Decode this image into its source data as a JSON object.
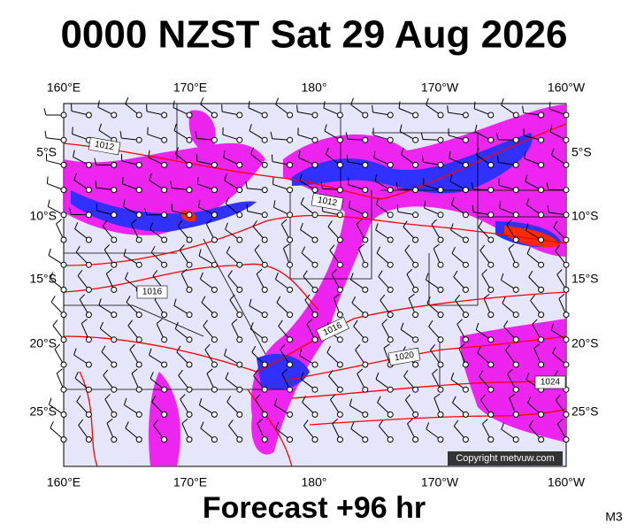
{
  "header": {
    "title": "0000 NZST Sat 29 Aug 2026"
  },
  "map": {
    "top_labels": [
      "160°E",
      "170°E",
      "180°",
      "170°W",
      "160°W"
    ],
    "bottom_labels": [
      "160°E",
      "170°E",
      "180°",
      "170°W",
      "160°W"
    ],
    "left_labels": [
      "5°S",
      "10°S",
      "15°S",
      "20°S",
      "25°S"
    ],
    "right_labels": [
      "5°S",
      "10°S",
      "15°S",
      "20°S",
      "25°S"
    ],
    "isobar_labels": [
      "1012",
      "1012",
      "1016",
      "1016",
      "1020",
      "1024"
    ],
    "copyright": "Copyright metvuw.com"
  },
  "footer": {
    "forecast": "Forecast +96 hr",
    "code": "M3"
  }
}
